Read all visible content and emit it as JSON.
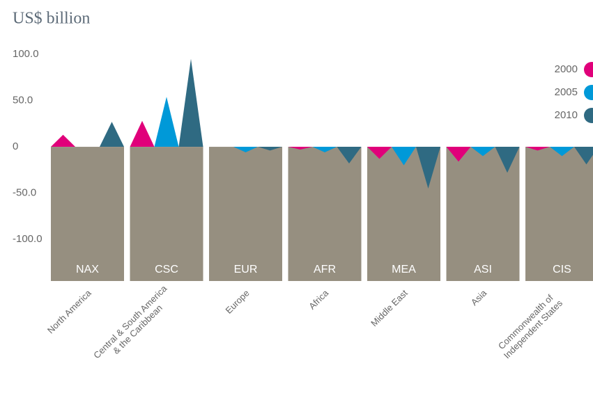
{
  "chart_data": {
    "type": "triangle-bar",
    "title": "US$ billion",
    "categories": [
      [
        "North America"
      ],
      [
        "Central & South America",
        "& the Caribbean"
      ],
      [
        "Europe"
      ],
      [
        "Africa"
      ],
      [
        "Middle East"
      ],
      [
        "Asia"
      ],
      [
        "Commonwealth of",
        "Independent States"
      ]
    ],
    "codes": [
      "NAX",
      "CSC",
      "EUR",
      "AFR",
      "MEA",
      "ASI",
      "CIS"
    ],
    "series": [
      {
        "name": "2000",
        "color": "#e0007a",
        "values": [
          13,
          28,
          0,
          -3,
          -13,
          -16,
          -4
        ]
      },
      {
        "name": "2005",
        "color": "#0099d8",
        "values": [
          0,
          54,
          -6,
          -6,
          -20,
          -10,
          -10
        ]
      },
      {
        "name": "2010",
        "color": "#2f6a82",
        "values": [
          27,
          95,
          -4,
          -18,
          -45,
          -28,
          -19
        ]
      }
    ],
    "ylim": [
      -145,
      100
    ],
    "yticks": [
      {
        "value": 100,
        "label": "100.0"
      },
      {
        "value": 50,
        "label": "50.0"
      },
      0,
      {
        "value": -50,
        "label": "-50.0"
      },
      {
        "value": -100,
        "label": "-100.0"
      }
    ],
    "block_color": "#968f80"
  }
}
